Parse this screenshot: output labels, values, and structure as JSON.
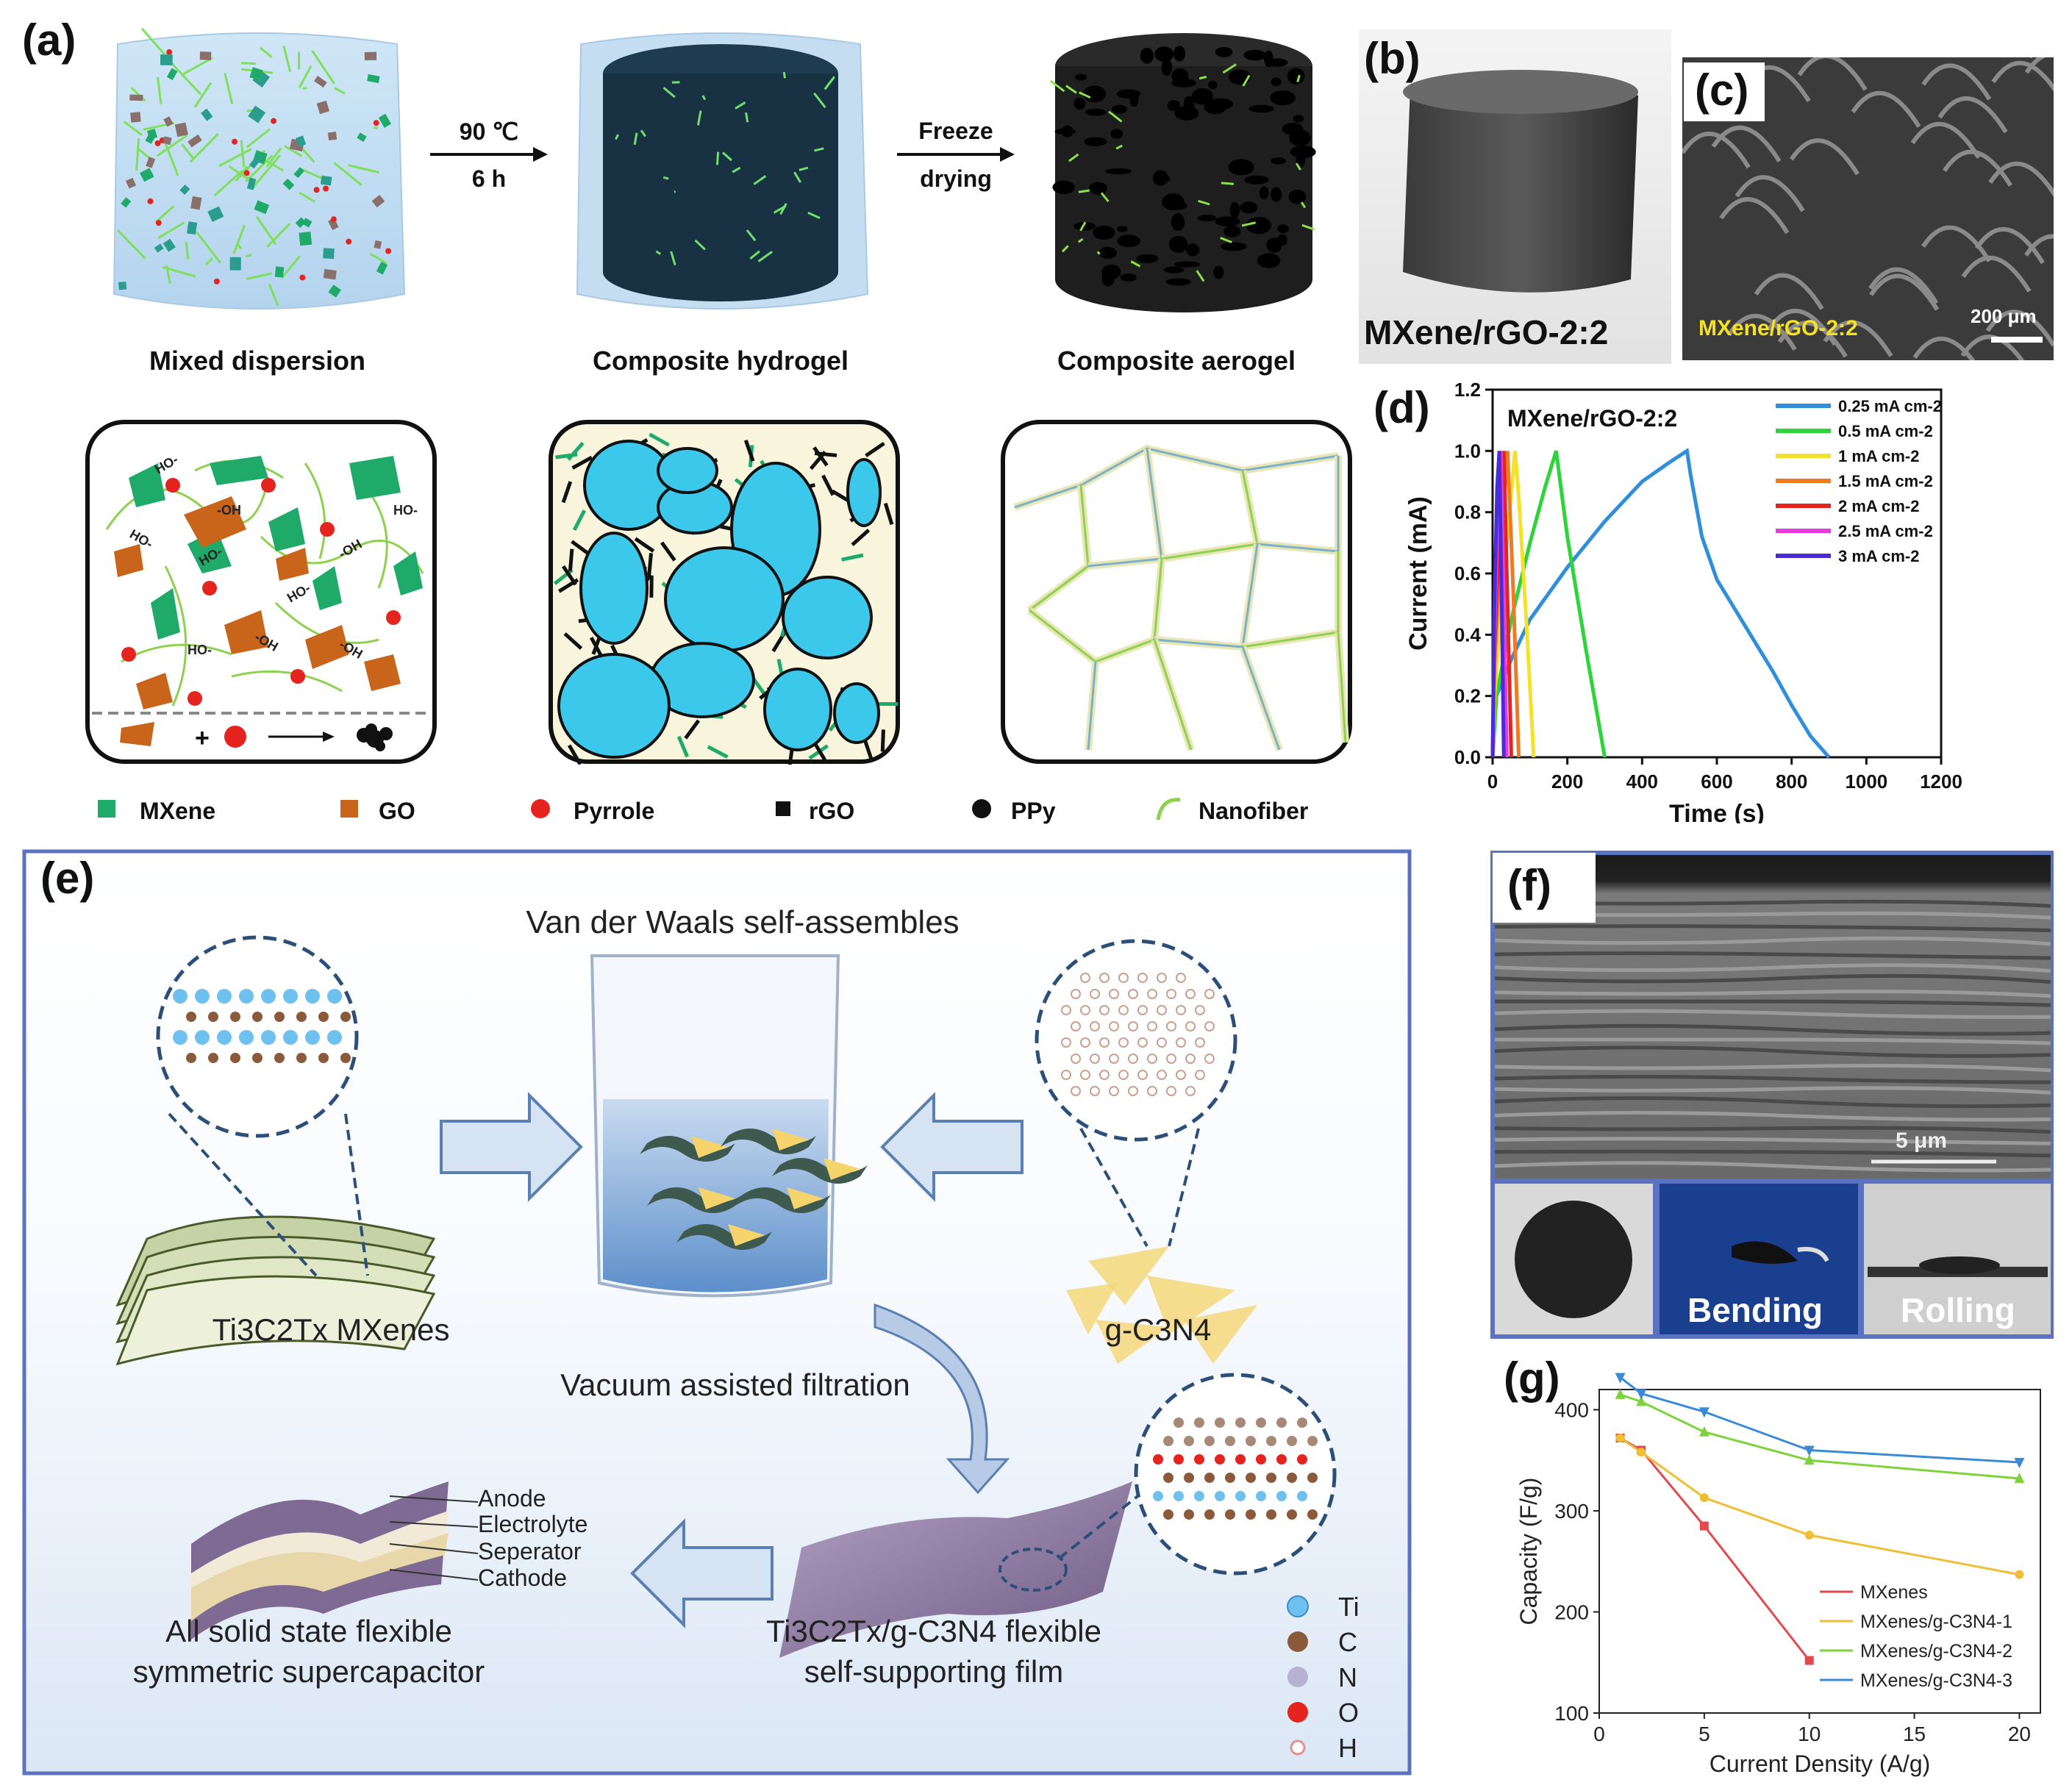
{
  "panel_a": {
    "label": "(a)",
    "step1_line1": "90 ℃",
    "step1_line2": "6 h",
    "step2_line1": "Freeze",
    "step2_line2": "drying",
    "stage_labels": [
      "Mixed dispersion",
      "Composite hydrogel",
      "Composite aerogel"
    ],
    "groups": [
      "HO-",
      "-OH",
      "HO-",
      "-OH",
      "HO-",
      "-OH",
      "HO-",
      "HO-",
      "-OH",
      "HO-"
    ],
    "legend": [
      "MXene",
      "GO",
      "Pyrrole",
      "rGO",
      "PPy",
      "Nanofiber"
    ],
    "reaction_plus": "+"
  },
  "panel_b": {
    "label": "(b)",
    "caption": "MXene/rGO-2:2"
  },
  "panel_c": {
    "label": "(c)",
    "caption": "MXene/rGO-2:2",
    "scalebar": "200 μm"
  },
  "panel_d": {
    "label": "(d)",
    "title": "MXene/rGO-2:2"
  },
  "panel_e": {
    "label": "(e)",
    "title": "Van der Waals self-assembles",
    "mxene_label": "Ti3C2Tx MXenes",
    "gcn_label": "g-C3N4",
    "filtration": "Vacuum assisted filtration",
    "layers": [
      "Anode",
      "Electrolyte",
      "Seperator",
      "Cathode"
    ],
    "device_line1": "All solid state flexible",
    "device_line2": "symmetric supercapacitor",
    "film_line1": "Ti3C2Tx/g-C3N4 flexible",
    "film_line2": "self-supporting film",
    "atoms": [
      "Ti",
      "C",
      "N",
      "O",
      "H"
    ]
  },
  "panel_f": {
    "label": "(f)",
    "scalebar": "5 μm",
    "bending": "Bending",
    "rolling": "Rolling"
  },
  "panel_g": {
    "label": "(g)"
  },
  "colors": {
    "mxene": "#1faa6a",
    "go": "#c8651b",
    "pyrrole": "#e52420",
    "gel_blue": "#3cc8ea",
    "nanofiber": "#8dd14f",
    "panel_border": "#5a72c0"
  },
  "chart_data": [
    {
      "id": "d",
      "type": "line",
      "title": "MXene/rGO-2:2",
      "xlabel": "Time (s)",
      "ylabel": "Current (mA)",
      "xlim": [
        0,
        1200
      ],
      "ylim": [
        0,
        1.2
      ],
      "xticks": [
        0,
        200,
        400,
        600,
        800,
        1000,
        1200
      ],
      "yticks": [
        0.0,
        0.2,
        0.4,
        0.6,
        0.8,
        1.0,
        1.2
      ],
      "legend_position": "top-right",
      "series": [
        {
          "name": "0.25 mA cm-2",
          "color": "#2f8fdd",
          "x": [
            0,
            10,
            50,
            100,
            200,
            300,
            400,
            470,
            520,
            530,
            560,
            600,
            650,
            700,
            750,
            800,
            850,
            900
          ],
          "y": [
            0,
            0.2,
            0.32,
            0.45,
            0.62,
            0.77,
            0.9,
            0.96,
            1.0,
            0.92,
            0.72,
            0.58,
            0.48,
            0.38,
            0.28,
            0.17,
            0.07,
            0.0
          ]
        },
        {
          "name": "0.5 mA cm-2",
          "color": "#2dd43a",
          "x": [
            0,
            10,
            50,
            100,
            140,
            170,
            200,
            250,
            300
          ],
          "y": [
            0,
            0.2,
            0.45,
            0.7,
            0.88,
            1.0,
            0.72,
            0.35,
            0.0
          ]
        },
        {
          "name": "1 mA cm-2",
          "color": "#f4e12a",
          "x": [
            0,
            5,
            30,
            60,
            70,
            90,
            110
          ],
          "y": [
            0,
            0.2,
            0.6,
            1.0,
            0.85,
            0.45,
            0.0
          ]
        },
        {
          "name": "1.5 mA cm-2",
          "color": "#f07a22",
          "x": [
            0,
            5,
            25,
            40,
            55,
            70
          ],
          "y": [
            0,
            0.3,
            0.75,
            1.0,
            0.55,
            0.0
          ]
        },
        {
          "name": "2 mA cm-2",
          "color": "#e52420",
          "x": [
            0,
            5,
            20,
            30,
            40,
            50
          ],
          "y": [
            0,
            0.35,
            0.8,
            1.0,
            0.5,
            0.0
          ]
        },
        {
          "name": "2.5 mA cm-2",
          "color": "#e83ae0",
          "x": [
            0,
            5,
            15,
            22,
            30,
            38
          ],
          "y": [
            0,
            0.4,
            0.85,
            1.0,
            0.5,
            0.0
          ]
        },
        {
          "name": "3 mA cm-2",
          "color": "#4a2bd6",
          "x": [
            0,
            4,
            12,
            18,
            25,
            30
          ],
          "y": [
            0,
            0.45,
            0.88,
            1.0,
            0.45,
            0.0
          ]
        }
      ]
    },
    {
      "id": "g",
      "type": "line",
      "xlabel": "Current Density (A/g)",
      "ylabel": "Capacity (F/g)",
      "xlim": [
        0,
        21
      ],
      "ylim": [
        100,
        420
      ],
      "xticks": [
        0,
        5,
        10,
        15,
        20
      ],
      "yticks": [
        100,
        200,
        300,
        400
      ],
      "legend_position": "bottom-right",
      "series": [
        {
          "name": "MXenes",
          "color": "#e5484d",
          "marker": "square",
          "x": [
            1,
            2,
            5,
            10
          ],
          "y": [
            372,
            360,
            285,
            152
          ]
        },
        {
          "name": "MXenes/g-C3N4-1",
          "color": "#f0be35",
          "marker": "circle",
          "x": [
            1,
            2,
            5,
            10,
            20
          ],
          "y": [
            372,
            358,
            313,
            276,
            237
          ]
        },
        {
          "name": "MXenes/g-C3N4-2",
          "color": "#7ed33c",
          "marker": "triangle-up",
          "x": [
            1,
            2,
            5,
            10,
            20
          ],
          "y": [
            415,
            408,
            378,
            350,
            332
          ]
        },
        {
          "name": "MXenes/g-C3N4-3",
          "color": "#3a8ad6",
          "marker": "triangle-down",
          "x": [
            1,
            2,
            5,
            10,
            20
          ],
          "y": [
            432,
            416,
            398,
            360,
            348
          ]
        }
      ]
    }
  ]
}
